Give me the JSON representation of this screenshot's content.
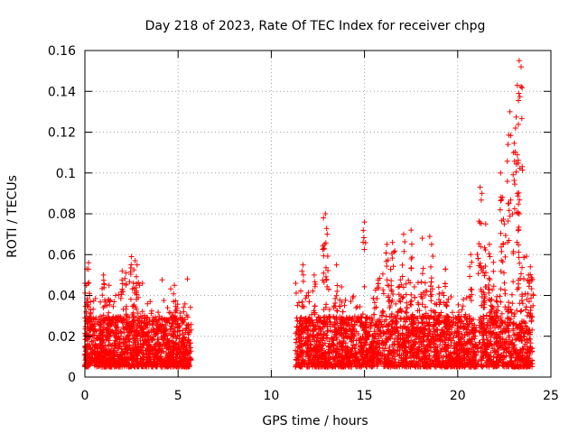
{
  "chart_data": {
    "type": "scatter",
    "title": "Day 218 of 2023, Rate Of TEC Index for receiver chpg",
    "xlabel": "GPS time / hours",
    "ylabel": "ROTI / TECUs",
    "xlim": [
      0,
      25
    ],
    "ylim": [
      0,
      0.16
    ],
    "xticks": [
      0,
      5,
      10,
      15,
      20,
      25
    ],
    "xtick_labels": [
      "0",
      "5",
      "10",
      "15",
      "20",
      "25"
    ],
    "yticks": [
      0,
      0.02,
      0.04,
      0.06,
      0.08,
      0.1,
      0.12,
      0.14,
      0.16
    ],
    "ytick_labels": [
      "0",
      "0.02",
      "0.04",
      "0.06",
      "0.08",
      "0.1",
      "0.12",
      "0.14",
      "0.16"
    ],
    "grid": true,
    "marker": "+",
    "color": "#ff0000",
    "series": [
      {
        "name": "ROTI",
        "data_coverage_hours": [
          [
            0.0,
            5.7
          ],
          [
            11.3,
            24.0
          ]
        ],
        "typical_range": [
          0.005,
          0.03
        ],
        "notable_points": [
          {
            "x": 0.2,
            "y": 0.056
          },
          {
            "x": 0.1,
            "y": 0.053
          },
          {
            "x": 0.25,
            "y": 0.04
          },
          {
            "x": 1.0,
            "y": 0.05
          },
          {
            "x": 1.3,
            "y": 0.045
          },
          {
            "x": 2.0,
            "y": 0.052
          },
          {
            "x": 2.2,
            "y": 0.051
          },
          {
            "x": 2.5,
            "y": 0.059
          },
          {
            "x": 2.7,
            "y": 0.057
          },
          {
            "x": 2.8,
            "y": 0.055
          },
          {
            "x": 2.6,
            "y": 0.046
          },
          {
            "x": 4.8,
            "y": 0.045
          },
          {
            "x": 5.3,
            "y": 0.032
          },
          {
            "x": 11.7,
            "y": 0.055
          },
          {
            "x": 12.3,
            "y": 0.05
          },
          {
            "x": 12.8,
            "y": 0.078
          },
          {
            "x": 12.9,
            "y": 0.08
          },
          {
            "x": 13.0,
            "y": 0.07
          },
          {
            "x": 13.5,
            "y": 0.055
          },
          {
            "x": 15.0,
            "y": 0.076
          },
          {
            "x": 16.2,
            "y": 0.065
          },
          {
            "x": 16.5,
            "y": 0.066
          },
          {
            "x": 17.1,
            "y": 0.07
          },
          {
            "x": 17.5,
            "y": 0.072
          },
          {
            "x": 18.1,
            "y": 0.068
          },
          {
            "x": 18.6,
            "y": 0.065
          },
          {
            "x": 20.7,
            "y": 0.06
          },
          {
            "x": 21.2,
            "y": 0.093
          },
          {
            "x": 21.3,
            "y": 0.09
          },
          {
            "x": 21.5,
            "y": 0.075
          },
          {
            "x": 21.7,
            "y": 0.065
          },
          {
            "x": 22.3,
            "y": 0.1
          },
          {
            "x": 22.4,
            "y": 0.088
          },
          {
            "x": 22.5,
            "y": 0.075
          },
          {
            "x": 22.7,
            "y": 0.114
          },
          {
            "x": 22.8,
            "y": 0.13
          },
          {
            "x": 23.0,
            "y": 0.11
          },
          {
            "x": 23.1,
            "y": 0.122
          },
          {
            "x": 23.2,
            "y": 0.143
          },
          {
            "x": 23.3,
            "y": 0.155
          },
          {
            "x": 23.4,
            "y": 0.152
          },
          {
            "x": 23.2,
            "y": 0.09
          },
          {
            "x": 23.3,
            "y": 0.08
          },
          {
            "x": 23.9,
            "y": 0.054
          },
          {
            "x": 23.8,
            "y": 0.05
          },
          {
            "x": 24.0,
            "y": 0.048
          }
        ]
      }
    ]
  }
}
